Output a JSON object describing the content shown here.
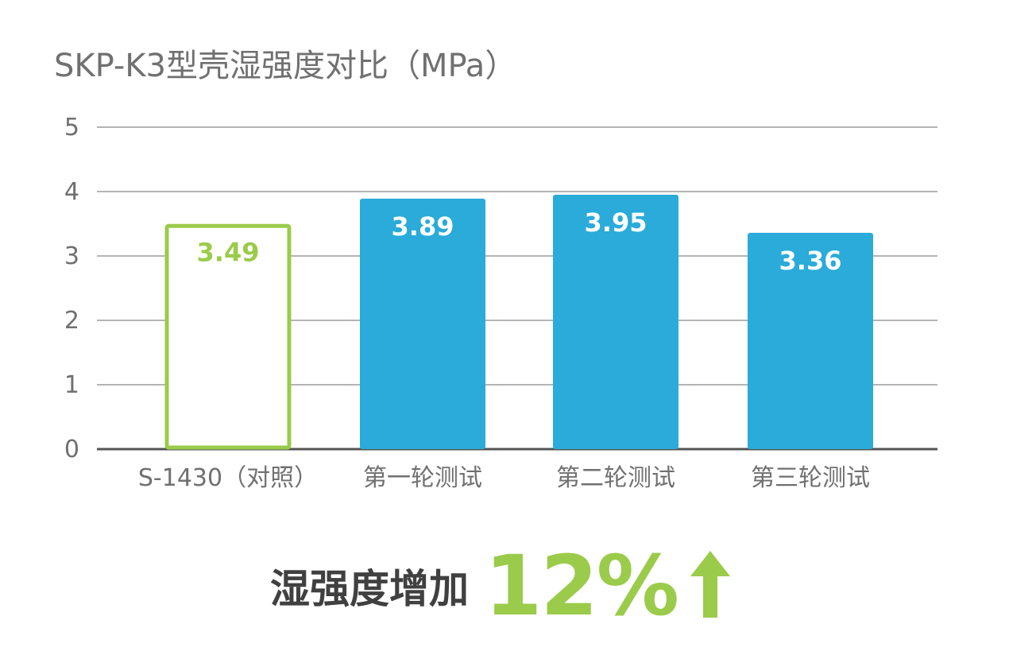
{
  "chart_data": {
    "type": "bar",
    "title": "SKP-K3型壳湿强度对比（MPa）",
    "categories": [
      "S-1430（对照）",
      "第一轮测试",
      "第二轮测试",
      "第三轮测试"
    ],
    "values": [
      3.49,
      3.89,
      3.95,
      3.36
    ],
    "value_labels": [
      "3.49",
      "3.89",
      "3.95",
      "3.36"
    ],
    "ylim": [
      0,
      5
    ],
    "yticks": [
      "0",
      "1",
      "2",
      "3",
      "4",
      "5"
    ],
    "grid": true,
    "legend": "none",
    "bar_styles": [
      "outline",
      "filled",
      "filled",
      "filled"
    ]
  },
  "summary": {
    "text": "湿强度增加",
    "value": "12%",
    "icon": "up-arrow-icon"
  },
  "colors": {
    "control": "#9bcb4a",
    "test": "#2aabd9",
    "grid": "#b4b4b4",
    "text": "#707070",
    "summary_text": "#404040"
  }
}
